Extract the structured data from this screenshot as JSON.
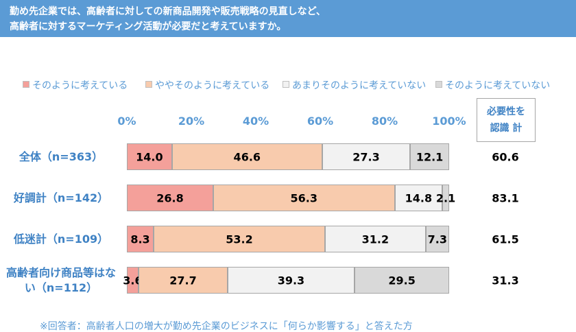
{
  "chart_data": {
    "type": "stacked_bar_horizontal",
    "title_lines": [
      "勤め先企業では、高齢者に対しての新商品開発や販売戦略の見直しなど、",
      "高齢者に対するマーケティング活動が必要だと考えていますか。"
    ],
    "categories": [
      "全体（n=363）",
      "好調計（n=142）",
      "低迷計（n=109）",
      "高齢者向け商品等はない（n=112）"
    ],
    "series": [
      {
        "name": "そのように考えている",
        "color": "#f4a09a",
        "values": [
          14.0,
          26.8,
          8.3,
          3.6
        ],
        "value_labels": [
          "14.0",
          "26.8",
          "8.3",
          "3.6"
        ]
      },
      {
        "name": "ややそのように考えている",
        "color": "#f8cbad",
        "values": [
          46.6,
          56.3,
          53.2,
          27.7
        ]
      },
      {
        "name": "あまりそのように考えていない",
        "color": "#f2f2f2",
        "values": [
          27.3,
          14.8,
          31.2,
          39.3
        ]
      },
      {
        "name": "そのように考えていない",
        "color": "#d9d9d9",
        "values": [
          12.1,
          2.1,
          7.3,
          29.5
        ]
      }
    ],
    "xlim": [
      0,
      100
    ],
    "xticks": [
      {
        "value": 0,
        "label": "0%"
      },
      {
        "value": 20,
        "label": "20%"
      },
      {
        "value": 40,
        "label": "40%"
      },
      {
        "value": 60,
        "label": "60%"
      },
      {
        "value": 80,
        "label": "80%"
      },
      {
        "value": 100,
        "label": "100%"
      }
    ],
    "grid": false,
    "summary": {
      "header_lines": [
        "必要性を",
        "認識 計"
      ],
      "values": [
        60.6,
        83.1,
        61.5,
        31.3
      ]
    },
    "footnote": "※回答者：高齢者人口の増大が勤め先企業のビジネスに「何らか影響する」と答えた方"
  }
}
